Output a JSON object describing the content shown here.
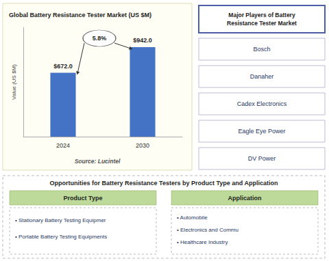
{
  "chart_data": {
    "type": "bar",
    "title": "Global Battery Resistance Tester Market (US $M)",
    "categories": [
      "2024",
      "2030"
    ],
    "values": [
      672.0,
      942.0
    ],
    "value_labels": [
      "$672.0",
      "$942.0"
    ],
    "data_labels": true,
    "color": "#4472C4",
    "ylabel": "Value (US $M)",
    "ylim": [
      0,
      1150
    ],
    "tick_labels": "x",
    "grid": false,
    "annotations": [
      "5.8%"
    ],
    "source": "Source: Lucintel",
    "players_title": "Major Players of Battery\nResistance Tester Market",
    "players": [
      "Bosch",
      "Danaher",
      "Cadex Electronics",
      "Eagle Eye Power",
      "DV Power"
    ],
    "bottom_title": "Opportunities for Battery Resistance Testers by Product Type and Application",
    "product_type_header": "Product Type",
    "product_type_items": [
      "• Stationary Battery Testing Equipmer",
      "• Portable Battery Testing Equipments"
    ],
    "application_header": "Application",
    "application_items": [
      "• Automobile",
      "• Electronics and Commu",
      "• Healthcare Industry"
    ]
  }
}
